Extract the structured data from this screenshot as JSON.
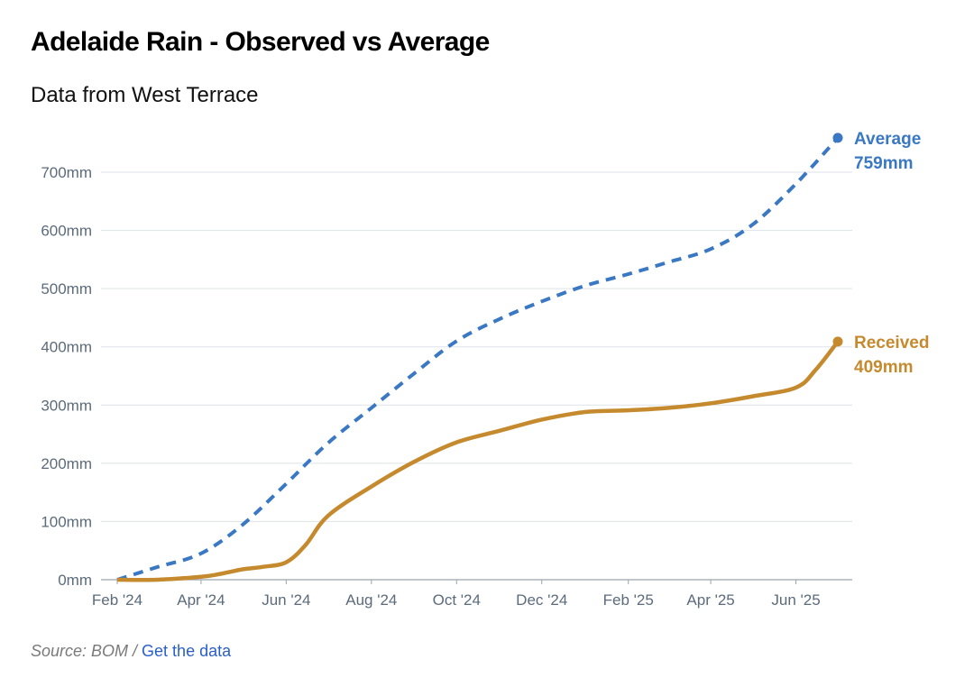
{
  "title": "Adelaide Rain - Observed vs Average",
  "subtitle": "Data from West Terrace",
  "source": {
    "text": "Source: BOM / ",
    "link": "Get the data"
  },
  "colors": {
    "average": "#3a78c4",
    "received": "#c68a2e",
    "grid": "#dde2e8",
    "axis": "#5b6b7c"
  },
  "chart_data": {
    "type": "line",
    "title": "Adelaide Rain - Observed vs Average",
    "subtitle": "Data from West Terrace",
    "xlabel": "",
    "ylabel": "",
    "ylim": [
      0,
      750
    ],
    "x_ticks": [
      "Feb '24",
      "Apr '24",
      "Jun '24",
      "Aug '24",
      "Oct '24",
      "Dec '24",
      "Feb '25",
      "Apr '25",
      "Jun '25"
    ],
    "y_ticks": [
      "0mm",
      "100mm",
      "200mm",
      "300mm",
      "400mm",
      "500mm",
      "600mm",
      "700mm"
    ],
    "y_tick_values": [
      0,
      100,
      200,
      300,
      400,
      500,
      600,
      700
    ],
    "grid": true,
    "legend": "end-of-line labels",
    "series": [
      {
        "name": "Average",
        "end_label": "Average",
        "end_value": "759mm",
        "style": "dashed",
        "x": [
          "2024-02-01",
          "2024-03-01",
          "2024-04-01",
          "2024-05-01",
          "2024-06-01",
          "2024-07-01",
          "2024-08-01",
          "2024-09-01",
          "2024-10-01",
          "2024-11-01",
          "2024-12-01",
          "2025-01-01",
          "2025-02-01",
          "2025-03-01",
          "2025-04-01",
          "2025-05-01",
          "2025-06-01",
          "2025-07-01"
        ],
        "values": [
          0,
          22,
          45,
          95,
          165,
          235,
          295,
          355,
          410,
          448,
          478,
          505,
          525,
          545,
          568,
          610,
          680,
          759
        ]
      },
      {
        "name": "Received",
        "end_label": "Received",
        "end_value": "409mm",
        "style": "solid",
        "x": [
          "2024-02-01",
          "2024-03-01",
          "2024-04-01",
          "2024-04-15",
          "2024-05-01",
          "2024-05-15",
          "2024-06-01",
          "2024-06-15",
          "2024-07-01",
          "2024-08-01",
          "2024-09-01",
          "2024-10-01",
          "2024-11-01",
          "2024-12-01",
          "2025-01-01",
          "2025-02-01",
          "2025-03-01",
          "2025-04-01",
          "2025-05-01",
          "2025-06-01",
          "2025-06-15",
          "2025-07-01"
        ],
        "values": [
          0,
          0,
          5,
          10,
          18,
          22,
          30,
          60,
          110,
          160,
          203,
          236,
          256,
          275,
          288,
          291,
          295,
          303,
          315,
          330,
          360,
          409
        ]
      }
    ]
  }
}
